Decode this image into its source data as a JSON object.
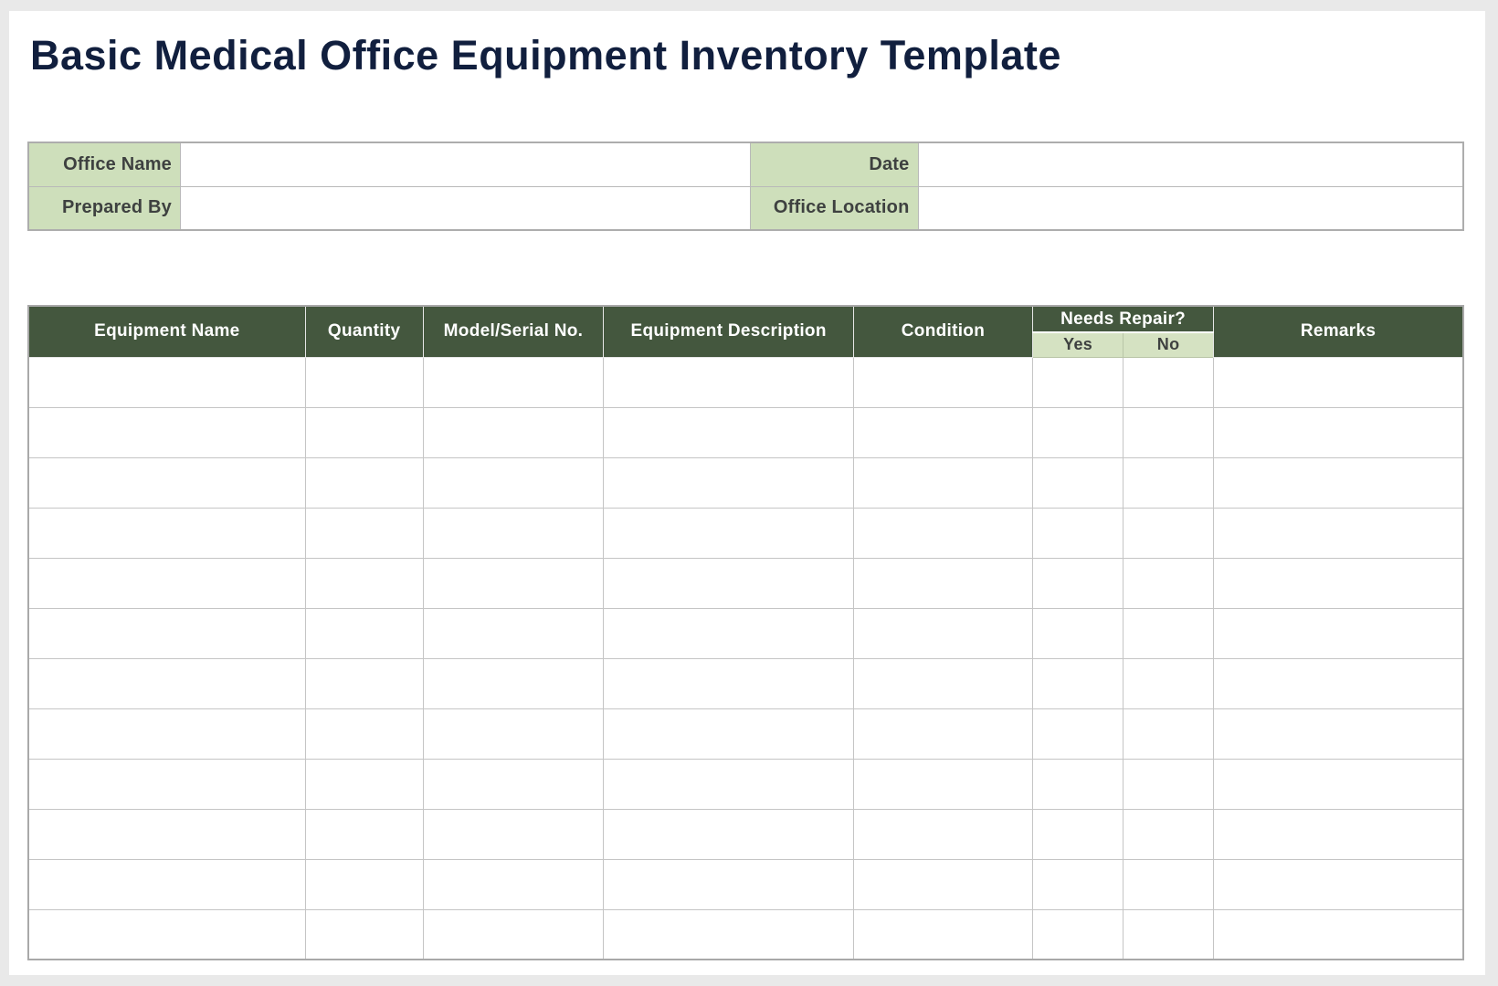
{
  "page": {
    "title": "Basic Medical Office Equipment Inventory Template"
  },
  "colors": {
    "title_navy": "#111f3e",
    "header_dark_green": "#44573e",
    "label_light_green": "#cedfbb",
    "subheader_light_green": "#d5e2c2",
    "label_text": "#3e4140",
    "grid_line": "#c5c5c5",
    "page_background": "#ffffff",
    "canvas_background": "#e9e9e9"
  },
  "info_form": {
    "fields": [
      {
        "label": "Office Name",
        "value": ""
      },
      {
        "label": "Date",
        "value": ""
      },
      {
        "label": "Prepared By",
        "value": ""
      },
      {
        "label": "Office Location",
        "value": ""
      }
    ]
  },
  "inventory_table": {
    "columns": [
      "Equipment Name",
      "Quantity",
      "Model/Serial No.",
      "Equipment Description",
      "Condition",
      "Needs Repair?",
      "Remarks"
    ],
    "needs_repair_subcolumns": [
      "Yes",
      "No"
    ],
    "row_count": 12,
    "body_cell_count": 8,
    "rows": [
      [
        "",
        "",
        "",
        "",
        "",
        "",
        "",
        ""
      ],
      [
        "",
        "",
        "",
        "",
        "",
        "",
        "",
        ""
      ],
      [
        "",
        "",
        "",
        "",
        "",
        "",
        "",
        ""
      ],
      [
        "",
        "",
        "",
        "",
        "",
        "",
        "",
        ""
      ],
      [
        "",
        "",
        "",
        "",
        "",
        "",
        "",
        ""
      ],
      [
        "",
        "",
        "",
        "",
        "",
        "",
        "",
        ""
      ],
      [
        "",
        "",
        "",
        "",
        "",
        "",
        "",
        ""
      ],
      [
        "",
        "",
        "",
        "",
        "",
        "",
        "",
        ""
      ],
      [
        "",
        "",
        "",
        "",
        "",
        "",
        "",
        ""
      ],
      [
        "",
        "",
        "",
        "",
        "",
        "",
        "",
        ""
      ],
      [
        "",
        "",
        "",
        "",
        "",
        "",
        "",
        ""
      ],
      [
        "",
        "",
        "",
        "",
        "",
        "",
        "",
        ""
      ]
    ]
  }
}
